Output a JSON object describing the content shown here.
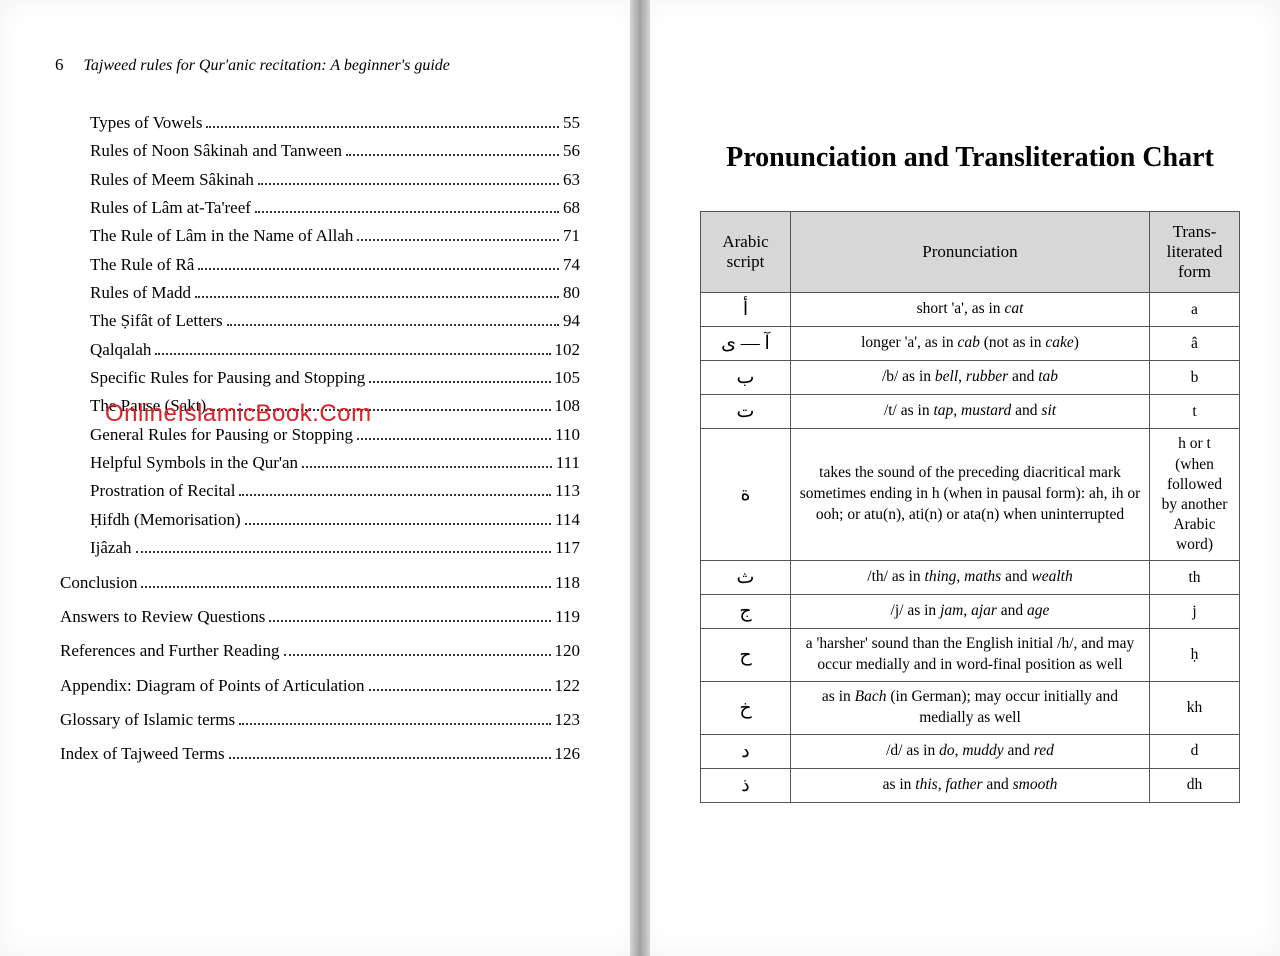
{
  "left": {
    "page_number": "6",
    "book_title": "Tajweed rules for Qur'anic recitation: A beginner's guide",
    "watermark": "OnlineIslamicBook.Com",
    "toc_sub": [
      {
        "title": "Types of Vowels",
        "page": "55"
      },
      {
        "title": "Rules of Noon Sâkinah and Tanween",
        "page": "56"
      },
      {
        "title": "Rules of Meem Sâkinah",
        "page": "63"
      },
      {
        "title": "Rules of Lâm at-Ta'reef",
        "page": "68"
      },
      {
        "title": "The Rule of Lâm in the Name of Allah",
        "page": "71"
      },
      {
        "title": "The Rule of Râ",
        "page": "74"
      },
      {
        "title": "Rules of Madd",
        "page": "80"
      },
      {
        "title": "The Ṣifât of Letters",
        "page": "94"
      },
      {
        "title": "Qalqalah",
        "page": "102"
      },
      {
        "title": "Specific Rules for Pausing and Stopping",
        "page": "105"
      },
      {
        "title": "The Pause (Sakt)",
        "page": "108"
      },
      {
        "title": "General Rules for Pausing or Stopping",
        "page": "110"
      },
      {
        "title": "Helpful Symbols in the Qur'an",
        "page": "111"
      },
      {
        "title": "Prostration of Recital",
        "page": "113"
      },
      {
        "title": "Ḥifdh (Memorisation)",
        "page": "114"
      },
      {
        "title": "Ijâzah",
        "page": "117"
      }
    ],
    "toc_major": [
      {
        "title": "Conclusion",
        "page": "118"
      },
      {
        "title": "Answers to Review Questions",
        "page": "119"
      },
      {
        "title": "References and Further Reading",
        "page": "120"
      },
      {
        "title": "Appendix: Diagram of Points of Articulation",
        "page": "122"
      },
      {
        "title": "Glossary of Islamic terms",
        "page": "123"
      },
      {
        "title": "Index of Tajweed Terms",
        "page": "126"
      }
    ]
  },
  "right": {
    "title": "Pronunciation and Transliteration Chart",
    "headers": {
      "col1": "Arabic script",
      "col2": "Pronunciation",
      "col3": "Trans-literated form"
    },
    "rows": [
      {
        "arabic": "أ",
        "pron_html": "short 'a', as in <span class='it'>cat</span>",
        "trans": "a"
      },
      {
        "arabic": "آ — ى",
        "pron_html": "longer 'a', as in <span class='it'>cab</span> (not as in <span class='it'>cake</span>)",
        "trans": "â"
      },
      {
        "arabic": "ب",
        "pron_html": "/b/ as in <span class='it'>bell</span>, <span class='it'>rubber</span> and <span class='it'>tab</span>",
        "trans": "b"
      },
      {
        "arabic": "ت",
        "pron_html": "/t/ as in <span class='it'>tap</span>, <span class='it'>mustard</span> and <span class='it'>sit</span>",
        "trans": "t"
      },
      {
        "arabic": "ة",
        "pron_html": "takes the sound of the preceding diacritical mark sometimes ending in h (when in pausal form): ah, ih or ooh; or atu(n), ati(n) or ata(n) when uninterrupted",
        "trans": "h or t (when followed by another Arabic word)"
      },
      {
        "arabic": "ث",
        "pron_html": "/th/ as in <span class='it'>thing</span>, <span class='it'>maths</span> and <span class='it'>wealth</span>",
        "trans": "th"
      },
      {
        "arabic": "ج",
        "pron_html": "/j/ as in <span class='it'>jam</span>, <span class='it'>ajar</span> and <span class='it'>age</span>",
        "trans": "j"
      },
      {
        "arabic": "ح",
        "pron_html": "a 'harsher' sound than the English initial /h/, and may occur medially and in word-final position as well",
        "trans": "ḥ"
      },
      {
        "arabic": "خ",
        "pron_html": "as in <span class='it'>Bach</span> (in German); may occur initially and medially as well",
        "trans": "kh"
      },
      {
        "arabic": "د",
        "pron_html": "/d/ as in <span class='it'>do</span>, <span class='it'>muddy</span> and <span class='it'>red</span>",
        "trans": "d"
      },
      {
        "arabic": "ذ",
        "pron_html": "as in <span class='it'>this</span>, <span class='it'>father</span> and <span class='it'>smooth</span>",
        "trans": "dh"
      }
    ]
  }
}
